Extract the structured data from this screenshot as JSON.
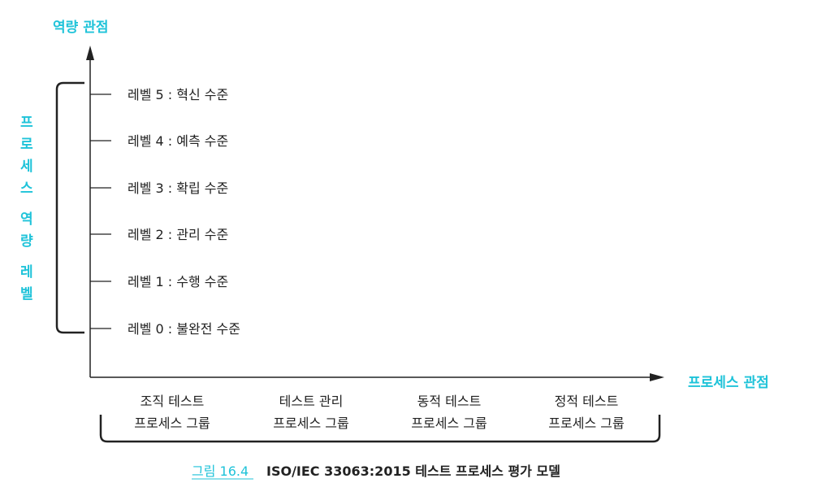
{
  "axes": {
    "y_title": "역량 관점",
    "x_title": "프로세스 관점"
  },
  "side_label_chars": [
    "프",
    "로",
    "세",
    "스",
    "역",
    "량",
    "레",
    "벨"
  ],
  "levels": [
    "레벨 5 : 혁신 수준",
    "레벨 4 : 예측 수준",
    "레벨 3 : 확립 수준",
    "레벨 2 : 관리 수준",
    "레벨 1 : 수행 수준",
    "레벨 0 : 불완전 수준"
  ],
  "groups": [
    {
      "line1": "조직 테스트",
      "line2": "프로세스 그룹"
    },
    {
      "line1": "테스트 관리",
      "line2": "프로세스 그룹"
    },
    {
      "line1": "동적 테스트",
      "line2": "프로세스 그룹"
    },
    {
      "line1": "정적 테스트",
      "line2": "프로세스 그룹"
    }
  ],
  "caption": {
    "label": "그림 16.4",
    "title": "ISO/IEC 33063:2015 테스트 프로세스 평가 모델"
  },
  "colors": {
    "accent": "#1fc3d9",
    "ink": "#222222"
  }
}
